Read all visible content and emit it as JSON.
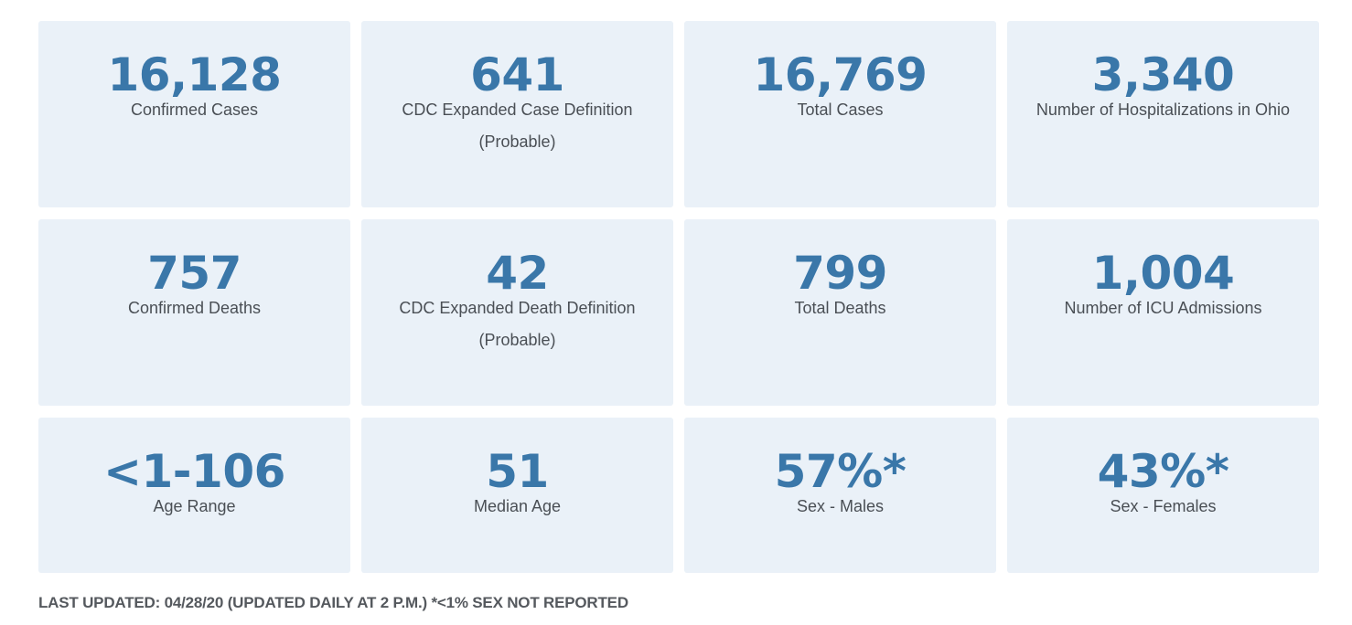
{
  "stats": [
    {
      "value": "16,128",
      "label": "Confirmed Cases"
    },
    {
      "value": "641",
      "label": "CDC Expanded Case Definition (Probable)"
    },
    {
      "value": "16,769",
      "label": "Total Cases"
    },
    {
      "value": "3,340",
      "label": "Number of Hospitalizations in Ohio"
    },
    {
      "value": "757",
      "label": "Confirmed Deaths"
    },
    {
      "value": "42",
      "label": "CDC Expanded Death Definition (Probable)"
    },
    {
      "value": "799",
      "label": "Total Deaths"
    },
    {
      "value": "1,004",
      "label": "Number of ICU Admissions"
    },
    {
      "value": "<1-106",
      "label": "Age Range"
    },
    {
      "value": "51",
      "label": "Median Age"
    },
    {
      "value": "57%*",
      "label": "Sex - Males"
    },
    {
      "value": "43%*",
      "label": "Sex - Females"
    }
  ],
  "footer": {
    "note": "LAST UPDATED: 04/28/20 (UPDATED DAILY AT 2 P.M.) *<1% SEX NOT REPORTED"
  },
  "colors": {
    "card_background": "#eaf1f8",
    "value_text": "#3a77a9",
    "label_text": "#4a4f55"
  }
}
